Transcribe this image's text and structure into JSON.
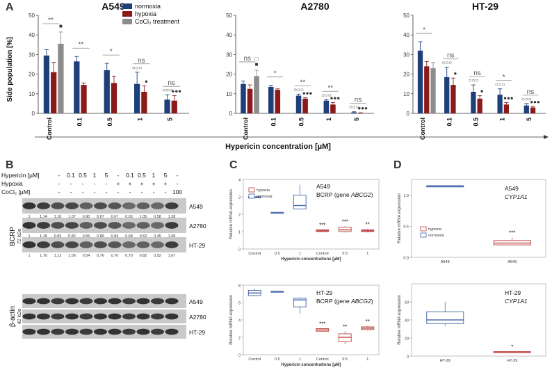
{
  "panels": {
    "A": "A",
    "B": "B",
    "C": "C",
    "D": "D"
  },
  "panelA": {
    "xaxis_title": "Hypericin concentration [µM]",
    "yaxis_title": "Side population [%]",
    "legend": [
      {
        "name": "normoxia",
        "color": "#1f3f7a"
      },
      {
        "name": "hypoxia",
        "color": "#8b1a1a"
      },
      {
        "name": "CoCl₂ treatment",
        "color": "#8c8c8c"
      }
    ]
  },
  "panelB": {
    "row_labels": [
      "Hypericin [µM]",
      "Hypoxia",
      "CoCl₂ [µM]"
    ],
    "hypericin_values": [
      "-",
      "0.1",
      "0.5",
      "1",
      "5",
      "-",
      "0.1",
      "0.5",
      "1",
      "5",
      "-"
    ],
    "hypoxia_values": [
      "-",
      "-",
      "-",
      "-",
      "-",
      "+",
      "+",
      "+",
      "+",
      "+",
      "-"
    ],
    "cocl2_values": [
      "-",
      "-",
      "-",
      "-",
      "-",
      "-",
      "-",
      "-",
      "-",
      "-",
      "100"
    ],
    "bcrp_label": "BCRP",
    "bcrp_kda": "72 kDa",
    "actin_label": "β-actin",
    "actin_kda": "42 kDa",
    "bcrp_cells": [
      "A549",
      "A2780",
      "HT-29"
    ],
    "actin_cells": [
      "A549",
      "A2780",
      "HT-29"
    ],
    "quant": [
      [
        "1",
        "1,14",
        "1,18",
        "1,07",
        "0,90",
        "0,67",
        "0,67",
        "0,63",
        "1,05",
        "0,58",
        "1,28"
      ],
      [
        "1",
        "1,15",
        "0,83",
        "0,82",
        "0,55",
        "0,89",
        "0,84",
        "0,68",
        "0,52",
        "0,45",
        "1,08"
      ],
      [
        "1",
        "1,70",
        "1,12",
        "1,06",
        "0,54",
        "0,76",
        "0,70",
        "0,70",
        "0,82",
        "0,52",
        "1,67"
      ]
    ]
  },
  "panelC": {
    "ylabel": "Relative mRNA expression",
    "xlabel": "Hypericin concentrations [µM]",
    "legend": [
      {
        "name": "hypoxia",
        "color": "#c0504d"
      },
      {
        "name": "normoxia",
        "color": "#4f6fb0"
      }
    ],
    "top_title_cell": "A549",
    "top_title_gene_prefix": "BCRP (gene ",
    "top_title_gene": "ABCG2",
    "top_title_gene_suffix": ")",
    "bottom_title_cell": "HT-29",
    "bottom_title_gene_prefix": "BCRP (gene ",
    "bottom_title_gene": "ABCG2",
    "bottom_title_gene_suffix": ")"
  },
  "panelD": {
    "ylabel": "Relative mRNA expression",
    "legend": [
      {
        "name": "hypoxia",
        "color": "#c0504d"
      },
      {
        "name": "normoxia",
        "color": "#4f6fb0"
      }
    ],
    "top_title_cell": "A549",
    "top_title_gene": "CYP1A1",
    "bottom_title_cell": "HT-29",
    "bottom_title_gene": "CYP1A1"
  },
  "chart_data": [
    {
      "type": "bar",
      "title": "A549",
      "categories": [
        "Control",
        "0.1",
        "0.5",
        "1",
        "5"
      ],
      "ylim": [
        0,
        50
      ],
      "yticks": [
        0,
        10,
        20,
        30,
        40,
        50
      ],
      "series": [
        {
          "name": "normoxia",
          "color": "#1f3f7a",
          "values": [
            29.5,
            26.5,
            22,
            15,
            7
          ],
          "errors": [
            3,
            2.5,
            3.5,
            6,
            2.5
          ]
        },
        {
          "name": "hypoxia",
          "color": "#8b1a1a",
          "values": [
            21,
            14.5,
            15.5,
            11,
            6.5
          ],
          "errors": [
            5,
            1,
            3.5,
            3,
            2.5
          ]
        },
        {
          "name": "CoCl₂ treatment",
          "color": "#8c8c8c",
          "values": [
            35.5,
            null,
            null,
            null,
            null
          ],
          "errors": [
            6,
            null,
            null,
            null,
            null
          ]
        }
      ],
      "significance": [
        "**",
        "**",
        "*",
        "ns",
        "ns"
      ],
      "markers": [
        {
          "category": "Control",
          "symbol": "■"
        },
        {
          "category": "1",
          "symbol": "○○○"
        },
        {
          "category": "1",
          "symbol": "●"
        },
        {
          "category": "5",
          "symbol": "○○○"
        },
        {
          "category": "5",
          "symbol": "●●●"
        }
      ]
    },
    {
      "type": "bar",
      "title": "A2780",
      "categories": [
        "Control",
        "0.1",
        "0.5",
        "1",
        "5"
      ],
      "ylim": [
        0,
        50
      ],
      "yticks": [
        0,
        10,
        20,
        30,
        40,
        50
      ],
      "series": [
        {
          "name": "normoxia",
          "color": "#1f3f7a",
          "values": [
            15,
            13.5,
            9,
            6.5,
            0.5
          ],
          "errors": [
            1.5,
            0.8,
            0.8,
            0.5,
            0.3
          ]
        },
        {
          "name": "hypoxia",
          "color": "#8b1a1a",
          "values": [
            12.5,
            12,
            7.5,
            4.5,
            0.2
          ],
          "errors": [
            2,
            0.5,
            0.5,
            1,
            0.1
          ]
        },
        {
          "name": "CoCl₂ treatment",
          "color": "#8c8c8c",
          "values": [
            19,
            null,
            null,
            null,
            null
          ],
          "errors": [
            3,
            null,
            null,
            null,
            null
          ]
        }
      ],
      "significance": [
        "ns",
        "*",
        "**",
        "**",
        "ns"
      ],
      "markers": [
        {
          "category": "Control",
          "symbol": "□"
        },
        {
          "category": "Control",
          "symbol": "■"
        },
        {
          "category": "0.5",
          "symbol": "○○○"
        },
        {
          "category": "0.5",
          "symbol": "●●●"
        },
        {
          "category": "1",
          "symbol": "○○○"
        },
        {
          "category": "1",
          "symbol": "●●●"
        },
        {
          "category": "5",
          "symbol": "○○○"
        },
        {
          "category": "5",
          "symbol": "●●●"
        }
      ]
    },
    {
      "type": "bar",
      "title": "HT-29",
      "categories": [
        "Control",
        "0.1",
        "0.5",
        "1",
        "5"
      ],
      "ylim": [
        0,
        50
      ],
      "yticks": [
        0,
        10,
        20,
        30,
        40,
        50
      ],
      "series": [
        {
          "name": "normoxia",
          "color": "#1f3f7a",
          "values": [
            32,
            18.5,
            11,
            9.5,
            4
          ],
          "errors": [
            4.5,
            5,
            3.5,
            3,
            1
          ]
        },
        {
          "name": "hypoxia",
          "color": "#8b1a1a",
          "values": [
            24,
            14.5,
            7.5,
            4.5,
            3
          ],
          "errors": [
            2.5,
            3.5,
            1.5,
            1,
            0.5
          ]
        },
        {
          "name": "CoCl₂ treatment",
          "color": "#8c8c8c",
          "values": [
            23,
            null,
            null,
            null,
            null
          ],
          "errors": [
            3,
            null,
            null,
            null,
            null
          ]
        }
      ],
      "significance": [
        "*",
        "ns",
        "ns",
        "*",
        "ns"
      ],
      "markers": [
        {
          "category": "0.1",
          "symbol": "○○○"
        },
        {
          "category": "0.1",
          "symbol": "●"
        },
        {
          "category": "0.5",
          "symbol": "○○○"
        },
        {
          "category": "0.5",
          "symbol": "●"
        },
        {
          "category": "1",
          "symbol": "○○○"
        },
        {
          "category": "1",
          "symbol": "●●●"
        },
        {
          "category": "5",
          "symbol": "○○○"
        },
        {
          "category": "5",
          "symbol": "●●●"
        }
      ]
    },
    {
      "type": "box",
      "title": "A549 BCRP (gene ABCG2)",
      "xlabel": "Hypericin concentrations [µM]",
      "ylabel": "Relative mRNA expression",
      "categories": [
        "Control",
        "0.5",
        "1",
        "Control",
        "0.5",
        "1"
      ],
      "ylim": [
        0,
        4
      ],
      "yticks": [
        0,
        1,
        2,
        3,
        4
      ],
      "boxes": [
        {
          "group": "normoxia",
          "q1": 3.0,
          "median": 3.0,
          "q3": 3.0,
          "min": 3.0,
          "max": 3.0
        },
        {
          "group": "normoxia",
          "q1": 2.1,
          "median": 2.1,
          "q3": 2.1,
          "min": 2.1,
          "max": 2.1
        },
        {
          "group": "normoxia",
          "q1": 2.3,
          "median": 2.5,
          "q3": 3.1,
          "min": 2.3,
          "max": 3.7
        },
        {
          "group": "hypoxia",
          "q1": 1.0,
          "median": 1.05,
          "q3": 1.1,
          "min": 1.0,
          "max": 1.1
        },
        {
          "group": "hypoxia",
          "q1": 1.0,
          "median": 1.1,
          "q3": 1.25,
          "min": 0.95,
          "max": 1.3
        },
        {
          "group": "hypoxia",
          "q1": 1.0,
          "median": 1.05,
          "q3": 1.1,
          "min": 0.95,
          "max": 1.15
        }
      ],
      "significance": [
        null,
        null,
        null,
        "***",
        "***",
        "**"
      ]
    },
    {
      "type": "box",
      "title": "HT-29 BCRP (gene ABCG2)",
      "xlabel": "Hypericin concentrations [µM]",
      "ylabel": "Relative mRNA expression",
      "categories": [
        "Control",
        "0.5",
        "1",
        "Control",
        "0.5",
        "1"
      ],
      "ylim": [
        0,
        8
      ],
      "yticks": [
        0,
        2,
        4,
        6,
        8
      ],
      "boxes": [
        {
          "group": "normoxia",
          "q1": 6.8,
          "median": 7.1,
          "q3": 7.4,
          "min": 6.7,
          "max": 7.6
        },
        {
          "group": "normoxia",
          "q1": 7.2,
          "median": 7.25,
          "q3": 7.3,
          "min": 7.2,
          "max": 7.3
        },
        {
          "group": "normoxia",
          "q1": 5.5,
          "median": 6.3,
          "q3": 6.5,
          "min": 4.7,
          "max": 6.6
        },
        {
          "group": "hypoxia",
          "q1": 2.7,
          "median": 2.85,
          "q3": 3.0,
          "min": 2.6,
          "max": 3.0
        },
        {
          "group": "hypoxia",
          "q1": 1.5,
          "median": 2.0,
          "q3": 2.4,
          "min": 1.2,
          "max": 2.7
        },
        {
          "group": "hypoxia",
          "q1": 2.9,
          "median": 3.05,
          "q3": 3.2,
          "min": 2.8,
          "max": 3.3
        }
      ],
      "significance": [
        null,
        null,
        null,
        "***",
        "**",
        "**"
      ]
    },
    {
      "type": "box",
      "title": "A549 CYP1A1",
      "ylabel": "Relative mRNA expression",
      "categories": [
        "A549",
        "A549"
      ],
      "ylim": [
        0,
        1.25
      ],
      "yticks": [
        0.0,
        0.5,
        1.0
      ],
      "boxes": [
        {
          "group": "normoxia",
          "q1": 1.13,
          "median": 1.14,
          "q3": 1.15,
          "min": 1.13,
          "max": 1.15
        },
        {
          "group": "hypoxia",
          "q1": 0.2,
          "median": 0.23,
          "q3": 0.27,
          "min": 0.2,
          "max": 0.32
        }
      ],
      "significance": [
        null,
        "***"
      ]
    },
    {
      "type": "box",
      "title": "HT-29 CYP1A1",
      "ylabel": "Relative mRNA expression",
      "categories": [
        "HT-29",
        "HT-29"
      ],
      "ylim": [
        0,
        80
      ],
      "yticks": [
        0,
        20,
        40,
        60
      ],
      "boxes": [
        {
          "group": "normoxia",
          "q1": 36,
          "median": 40,
          "q3": 49,
          "min": 33,
          "max": 60
        },
        {
          "group": "hypoxia",
          "q1": 4,
          "median": 4.5,
          "q3": 5,
          "min": 4,
          "max": 5
        }
      ],
      "significance": [
        null,
        "*"
      ]
    }
  ]
}
